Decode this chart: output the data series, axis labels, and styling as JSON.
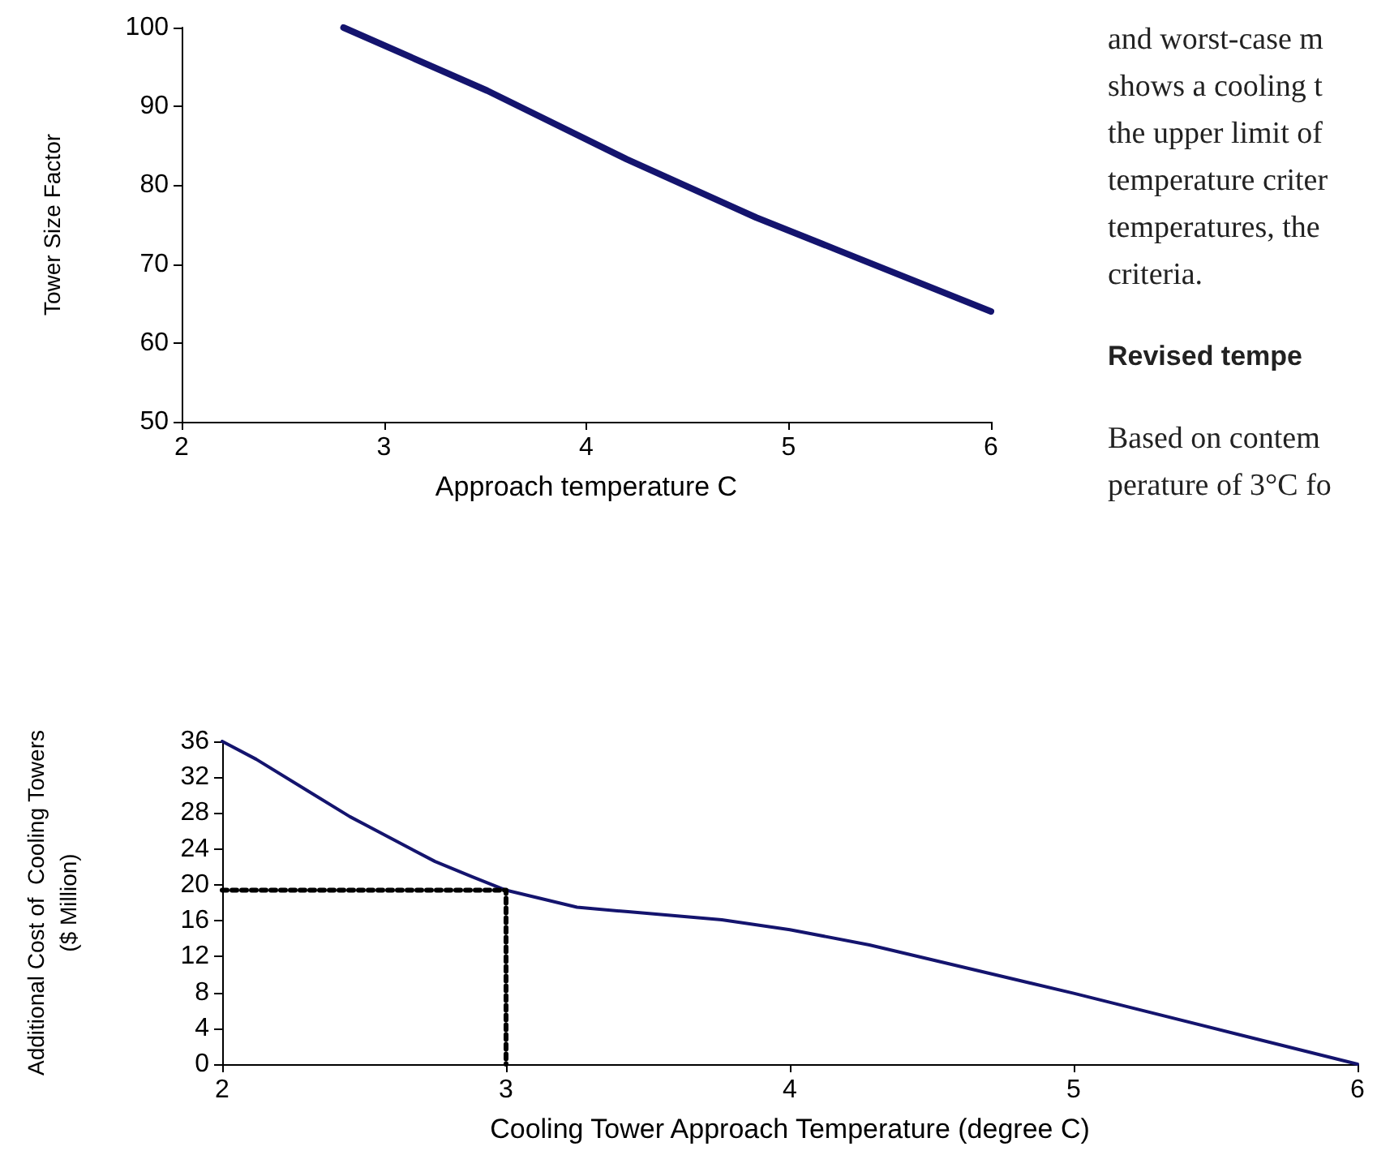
{
  "chart_data": [
    {
      "type": "line",
      "xlabel": "Approach temperature C",
      "ylabel": "Tower Size Factor",
      "x": [
        2.8,
        3.51,
        4.2,
        4.84,
        5.24,
        6
      ],
      "values": [
        100,
        92,
        83.3,
        75.9,
        71.8,
        64
      ],
      "color": "#14146e",
      "xlim": [
        2,
        6
      ],
      "xticks": [
        2,
        3,
        4,
        5,
        6
      ],
      "ylim": [
        50,
        100
      ],
      "yticks": [
        50,
        60,
        70,
        80,
        90,
        100
      ],
      "marker": "none",
      "line_style": "solid"
    },
    {
      "type": "other",
      "annotations": [
        "and worst-case m",
        "shows a cooling t",
        "the upper limit of",
        "temperature criter",
        "temperatures,  the",
        "criteria."
      ]
    },
    {
      "type": "other",
      "title": "Revised tempe",
      "annotations": [
        "Based on contem",
        "perature of 3°C fo"
      ]
    },
    {
      "type": "line",
      "xlabel": "Cooling Tower Approach Temperature (degree C)",
      "ylabel": "Additional Cost of  Cooling Towers\n($ Million)",
      "xlim": [
        2,
        6
      ],
      "xticks": [
        2,
        3,
        4,
        5,
        6
      ],
      "ylim": [
        0,
        36
      ],
      "yticks": [
        0,
        4,
        8,
        12,
        16,
        20,
        24,
        28,
        32,
        36
      ],
      "marker": "none",
      "series": [
        {
          "x": [
            2,
            2.12,
            2.3,
            2.45,
            2.75,
            2.88,
            3,
            3.25,
            3.43,
            3.76,
            4,
            4.28,
            5,
            6
          ],
          "values": [
            36,
            34,
            30.5,
            27.6,
            22.6,
            20.9,
            19.4,
            17.5,
            17,
            16.1,
            15,
            13.3,
            7.9,
            0
          ],
          "color": "#14146e",
          "line_style": "solid"
        },
        {
          "x": [
            2,
            3,
            3
          ],
          "values": [
            19.4,
            19.4,
            0
          ],
          "color": "#000000",
          "line_style": "dotted"
        }
      ]
    }
  ]
}
